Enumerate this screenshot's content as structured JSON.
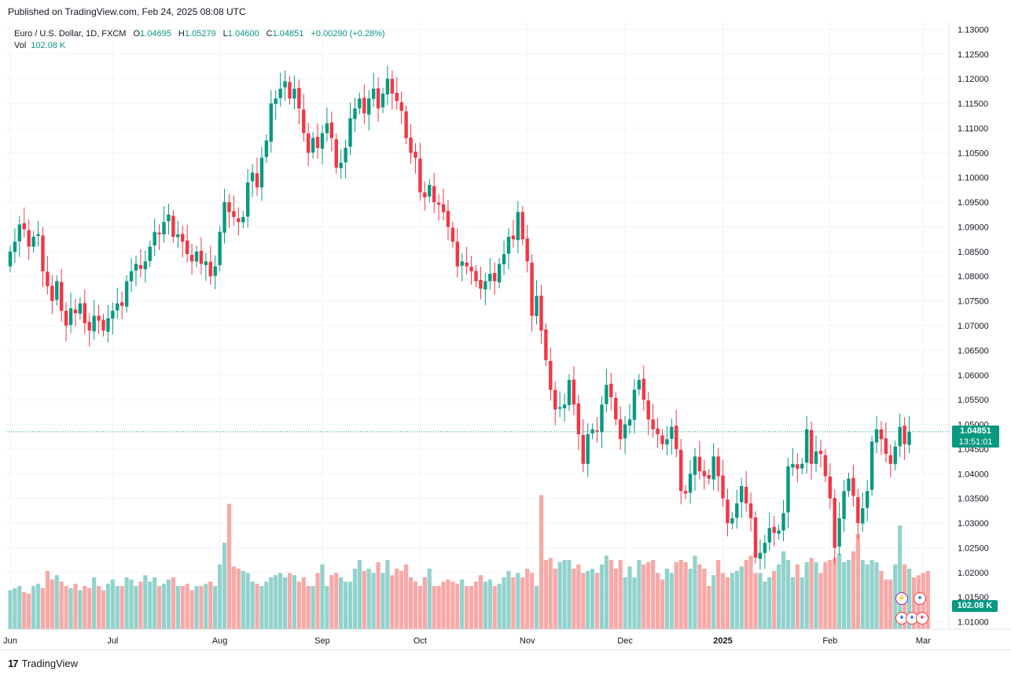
{
  "header": {
    "published": "Published on TradingView.com, Feb 24, 2025 08:08 UTC"
  },
  "legend": {
    "symbol": "Euro / U.S. Dollar, 1D, FXCM",
    "open_label": "O",
    "open": "1.04695",
    "high_label": "H",
    "high": "1.05279",
    "low_label": "L",
    "low": "1.04600",
    "close_label": "C",
    "close": "1.04851",
    "change": "+0.00290 (+0.28%)",
    "vol_label": "Vol",
    "vol_value": "102.08 K"
  },
  "price_tag": {
    "price": "1.04851",
    "countdown": "13:51:01"
  },
  "volume_tag": "102.08 K",
  "footer": {
    "brand": "TradingView"
  },
  "colors": {
    "up": "#089981",
    "down": "#f23645",
    "vol_up": "#92d2cc",
    "vol_down": "#f7a9a7",
    "grid": "#f0f3fa"
  },
  "chart_data": {
    "type": "candlestick",
    "symbol": "EURUSD",
    "interval": "1D",
    "ylim": [
      1.0085,
      1.1315
    ],
    "y_ticks": [
      "1.13000",
      "1.12500",
      "1.12000",
      "1.11500",
      "1.11000",
      "1.10500",
      "1.10000",
      "1.09500",
      "1.09000",
      "1.08500",
      "1.08000",
      "1.07500",
      "1.07000",
      "1.06500",
      "1.06000",
      "1.05500",
      "1.05000",
      "1.04500",
      "1.04000",
      "1.03500",
      "1.03000",
      "1.02500",
      "1.02000",
      "1.01500",
      "1.01000"
    ],
    "x_ticks": [
      {
        "label": "Jun",
        "index": 0
      },
      {
        "label": "Jul",
        "index": 22
      },
      {
        "label": "Aug",
        "index": 45
      },
      {
        "label": "Sep",
        "index": 67
      },
      {
        "label": "Oct",
        "index": 88
      },
      {
        "label": "Nov",
        "index": 111
      },
      {
        "label": "Dec",
        "index": 132
      },
      {
        "label": "2025",
        "index": 153
      },
      {
        "label": "Feb",
        "index": 176
      },
      {
        "label": "Mar",
        "index": 196
      }
    ],
    "last_price": 1.04851,
    "grid": true,
    "closes": [
      1.085,
      1.087,
      1.0905,
      1.0895,
      1.086,
      1.088,
      1.0885,
      1.081,
      1.078,
      1.075,
      1.079,
      1.073,
      1.07,
      1.0735,
      1.0725,
      1.0745,
      1.0705,
      1.069,
      1.072,
      1.071,
      1.069,
      1.0715,
      1.073,
      1.0745,
      1.074,
      1.079,
      1.081,
      1.0825,
      1.0815,
      1.083,
      1.086,
      1.089,
      1.0885,
      1.091,
      1.0925,
      1.088,
      1.0885,
      1.087,
      1.0845,
      1.083,
      1.085,
      1.0825,
      1.083,
      1.08,
      1.082,
      1.089,
      1.095,
      1.093,
      1.092,
      1.091,
      1.092,
      1.099,
      1.101,
      1.098,
      1.104,
      1.1075,
      1.115,
      1.116,
      1.118,
      1.1195,
      1.116,
      1.118,
      1.114,
      1.109,
      1.105,
      1.108,
      1.106,
      1.109,
      1.111,
      1.108,
      1.102,
      1.103,
      1.106,
      1.112,
      1.114,
      1.116,
      1.113,
      1.116,
      1.118,
      1.114,
      1.117,
      1.12,
      1.117,
      1.1155,
      1.1135,
      1.108,
      1.105,
      1.104,
      1.097,
      1.096,
      1.0985,
      1.095,
      1.0945,
      1.093,
      1.09,
      1.087,
      1.082,
      1.083,
      1.082,
      1.081,
      1.079,
      1.0775,
      1.079,
      1.0805,
      1.079,
      1.0825,
      1.0845,
      1.088,
      1.0875,
      1.093,
      1.0875,
      1.083,
      1.072,
      1.076,
      1.069,
      1.063,
      1.057,
      1.053,
      1.0535,
      1.054,
      1.059,
      1.054,
      1.048,
      1.042,
      1.048,
      1.049,
      1.0485,
      1.054,
      1.058,
      1.0555,
      1.051,
      1.047,
      1.05,
      1.051,
      1.057,
      1.059,
      1.055,
      1.051,
      1.049,
      1.048,
      1.046,
      1.047,
      1.0495,
      1.045,
      1.0365,
      1.036,
      1.04,
      1.0435,
      1.0405,
      1.0395,
      1.039,
      1.0435,
      1.0395,
      1.035,
      1.03,
      1.031,
      1.034,
      1.0375,
      1.034,
      1.031,
      1.023,
      1.024,
      1.026,
      1.029,
      1.028,
      1.0285,
      1.032,
      1.0415,
      1.042,
      1.041,
      1.042,
      1.049,
      1.042,
      1.0445,
      1.044,
      1.0395,
      1.035,
      1.025,
      1.031,
      1.0365,
      1.039,
      1.0355,
      1.03,
      1.033,
      1.0365,
      1.0465,
      1.049,
      1.047,
      1.044,
      1.042,
      1.0455,
      1.0495,
      1.046,
      1.0485
    ],
    "volume_range": [
      0,
      3000
    ],
    "volumes": [
      900,
      950,
      1000,
      860,
      820,
      1000,
      1050,
      950,
      1350,
      1150,
      1250,
      1100,
      1000,
      950,
      1050,
      900,
      1000,
      950,
      1200,
      1000,
      900,
      1050,
      1150,
      1000,
      1000,
      1200,
      1150,
      1000,
      1100,
      1250,
      1100,
      1200,
      1000,
      1050,
      1150,
      1200,
      1000,
      1000,
      1050,
      900,
      1000,
      1000,
      1050,
      1100,
      1000,
      1500,
      2000,
      2900,
      1450,
      1400,
      1350,
      1300,
      1100,
      1050,
      1000,
      1100,
      1200,
      1250,
      1300,
      1200,
      1300,
      1250,
      1100,
      1200,
      1000,
      1000,
      1300,
      1500,
      1000,
      1250,
      1300,
      1200,
      1100,
      1100,
      1400,
      1600,
      1350,
      1400,
      1300,
      1550,
      1300,
      1600,
      1250,
      1400,
      1350,
      1500,
      1200,
      1100,
      1000,
      1200,
      1400,
      1000,
      1000,
      1100,
      1150,
      1100,
      1050,
      1150,
      1000,
      1000,
      1100,
      1250,
      1100,
      1150,
      1000,
      1050,
      1200,
      1350,
      1200,
      1300,
      1200,
      1400,
      1300,
      1000,
      3100,
      1600,
      1650,
      1400,
      1550,
      1600,
      1600,
      1400,
      1500,
      1300,
      1350,
      1400,
      1300,
      1500,
      1700,
      1600,
      1400,
      1600,
      1200,
      1450,
      1200,
      1600,
      1500,
      1550,
      1600,
      1300,
      1150,
      1400,
      1300,
      1550,
      1600,
      1550,
      1400,
      1700,
      1500,
      1400,
      1000,
      1250,
      1600,
      1300,
      1200,
      1300,
      1350,
      1450,
      1600,
      1700,
      1300,
      1300,
      1100,
      1200,
      1350,
      1500,
      1800,
      1600,
      1200,
      1500,
      1200,
      1550,
      1650,
      1550,
      1300,
      1550,
      1600,
      1650,
      1750,
      1550,
      1600,
      1800,
      2200,
      1600,
      1500,
      1600,
      1550,
      1350,
      1150,
      1150,
      1500,
      2400,
      1500,
      1400,
      1200,
      1250,
      1300,
      1350
    ]
  }
}
